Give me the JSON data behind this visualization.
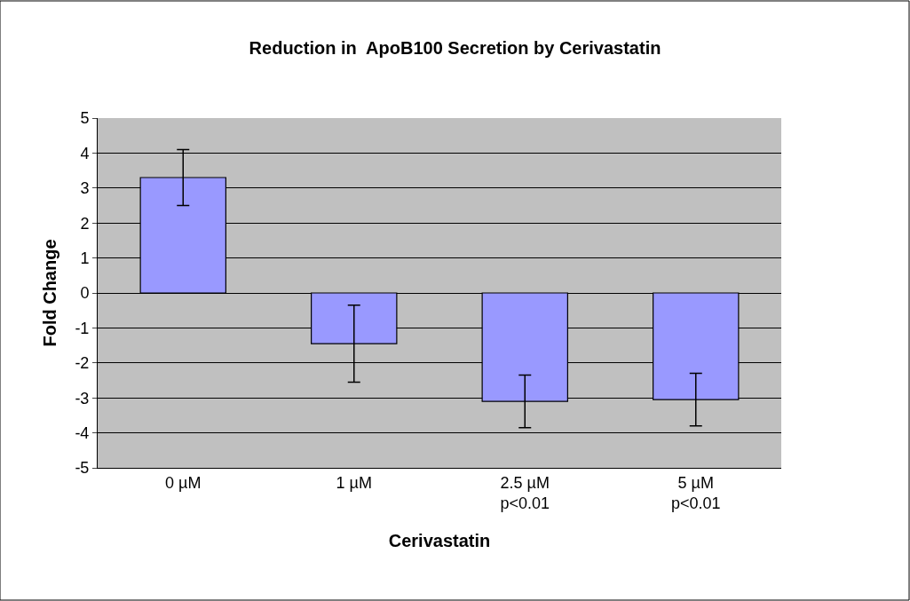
{
  "chart_data": {
    "type": "bar",
    "title": "Reduction in  ApoB100 Secretion by Cerivastatin",
    "xlabel": "Cerivastatin",
    "ylabel": "Fold Change",
    "categories": [
      "0 µM",
      "1 µM",
      "2.5 µM\np<0.01",
      "5 µM\np<0.01"
    ],
    "values": [
      3.3,
      -1.45,
      -3.1,
      -3.05
    ],
    "errors": [
      0.8,
      1.1,
      0.75,
      0.75
    ],
    "color": "#9999ff",
    "ylim": [
      -5,
      5
    ],
    "yticks": [
      -5,
      -4,
      -3,
      -2,
      -1,
      0,
      1,
      2,
      3,
      4,
      5
    ],
    "grid": "y"
  }
}
